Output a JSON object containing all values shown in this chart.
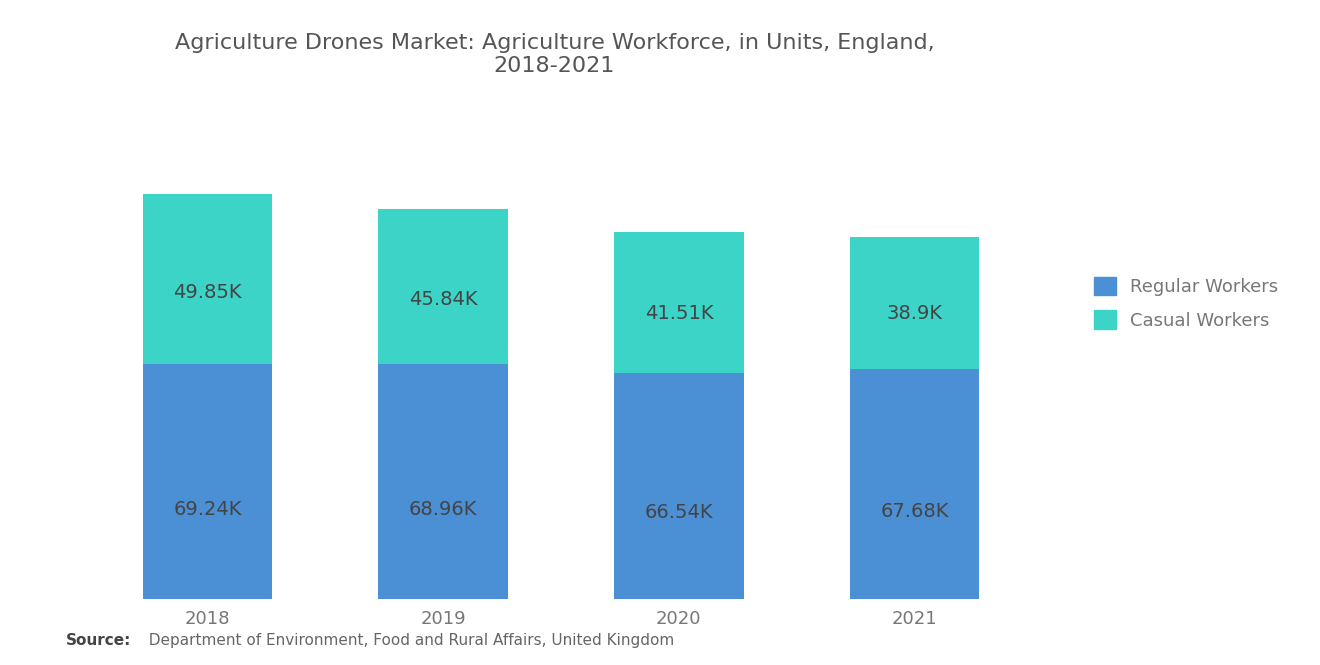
{
  "title": "Agriculture Drones Market: Agriculture Workforce, in Units, England,\n2018-2021",
  "years": [
    "2018",
    "2019",
    "2020",
    "2021"
  ],
  "regular_workers": [
    69.24,
    68.96,
    66.54,
    67.68
  ],
  "casual_workers": [
    49.85,
    45.84,
    41.51,
    38.9
  ],
  "regular_labels": [
    "69.24K",
    "68.96K",
    "66.54K",
    "67.68K"
  ],
  "casual_labels": [
    "49.85K",
    "45.84K",
    "41.51K",
    "38.9K"
  ],
  "regular_color": "#4B8FD4",
  "casual_color": "#3DD4C8",
  "background_color": "#FFFFFF",
  "title_fontsize": 16,
  "label_fontsize": 14,
  "tick_fontsize": 13,
  "legend_fontsize": 13,
  "label_color": "#444444",
  "tick_color": "#777777",
  "title_color": "#555555",
  "source_bold": "Source:",
  "source_rest": "  Department of Environment, Food and Rural Affairs, United Kingdom",
  "bar_width": 0.55,
  "ylim_max": 145
}
